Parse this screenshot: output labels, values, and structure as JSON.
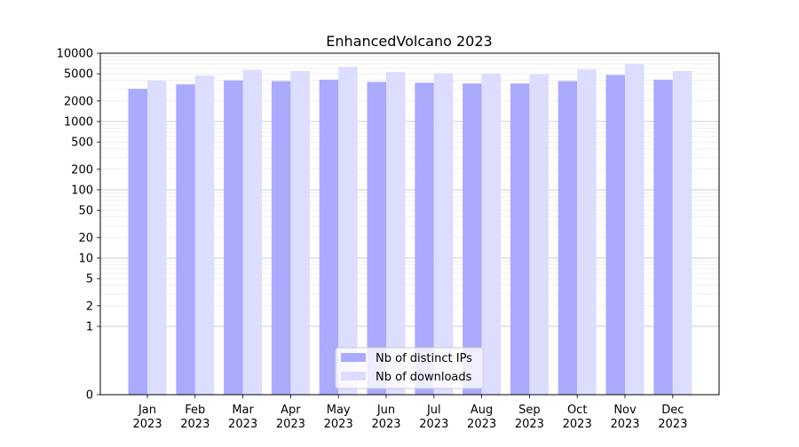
{
  "chart_data": {
    "type": "bar",
    "title": "EnhancedVolcano 2023",
    "xlabel": "",
    "ylabel": "",
    "y_scale": "symlog",
    "ylim": [
      0,
      10000
    ],
    "y_ticks": [
      0,
      1,
      2,
      5,
      10,
      20,
      50,
      100,
      200,
      500,
      1000,
      2000,
      5000,
      10000
    ],
    "grid": true,
    "legend_position": "bottom-center",
    "categories": [
      [
        "Jan",
        "2023"
      ],
      [
        "Feb",
        "2023"
      ],
      [
        "Mar",
        "2023"
      ],
      [
        "Apr",
        "2023"
      ],
      [
        "May",
        "2023"
      ],
      [
        "Jun",
        "2023"
      ],
      [
        "Jul",
        "2023"
      ],
      [
        "Aug",
        "2023"
      ],
      [
        "Sep",
        "2023"
      ],
      [
        "Oct",
        "2023"
      ],
      [
        "Nov",
        "2023"
      ],
      [
        "Dec",
        "2023"
      ]
    ],
    "series": [
      {
        "name": "Nb of distinct IPs",
        "color": "#aaaaff",
        "values": [
          3000,
          3500,
          4000,
          3900,
          4100,
          3800,
          3700,
          3600,
          3600,
          3900,
          4800,
          4100
        ]
      },
      {
        "name": "Nb of downloads",
        "color": "#ddddff",
        "values": [
          4000,
          4700,
          5700,
          5500,
          6300,
          5300,
          5100,
          5000,
          4900,
          5800,
          7000,
          5500
        ]
      }
    ]
  }
}
